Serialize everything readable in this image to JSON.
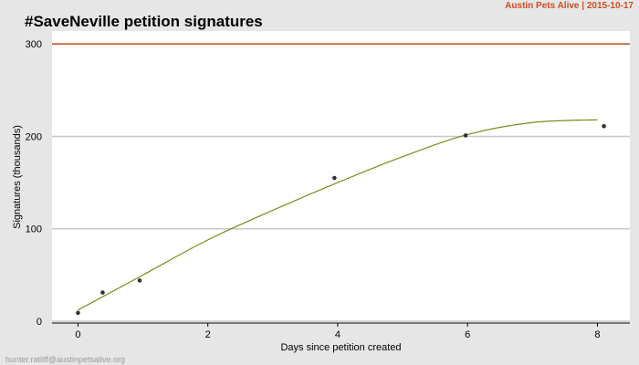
{
  "header": {
    "title": "#SaveNeville petition signatures",
    "source": "Austin Pets Alive | 2015-10-17"
  },
  "footer": {
    "credit": "hunter.ratliff@austinpetsalive.org"
  },
  "colors": {
    "background": "#e6e6e6",
    "panel": "#ffffff",
    "gridline": "#c8c8c8",
    "reference_line": "#c8502a",
    "trend_line": "#7a8c1a",
    "points": "#333333",
    "source_text": "#d24b1e"
  },
  "chart_data": {
    "type": "scatter",
    "title": "#SaveNeville petition signatures",
    "xlabel": "Days since petition created",
    "ylabel": "Signatures (thousands)",
    "xlim": [
      -0.4,
      8.5
    ],
    "ylim": [
      -2,
      314
    ],
    "x_ticks": [
      0,
      2,
      4,
      6,
      8
    ],
    "y_ticks": [
      0,
      100,
      200,
      300
    ],
    "grid": "horizontal",
    "reference_line": {
      "y": 300
    },
    "series": [
      {
        "x": [
          0,
          0.38,
          0.95,
          3.95,
          5.97,
          8.1
        ],
        "y": [
          9,
          31,
          44,
          155,
          201,
          211
        ]
      }
    ],
    "trend": {
      "type": "smooth fit",
      "x": [
        0,
        1,
        2,
        3,
        4,
        5,
        6,
        7,
        8
      ],
      "y": [
        12,
        50,
        88,
        120,
        150,
        178,
        202,
        215,
        218
      ]
    }
  }
}
